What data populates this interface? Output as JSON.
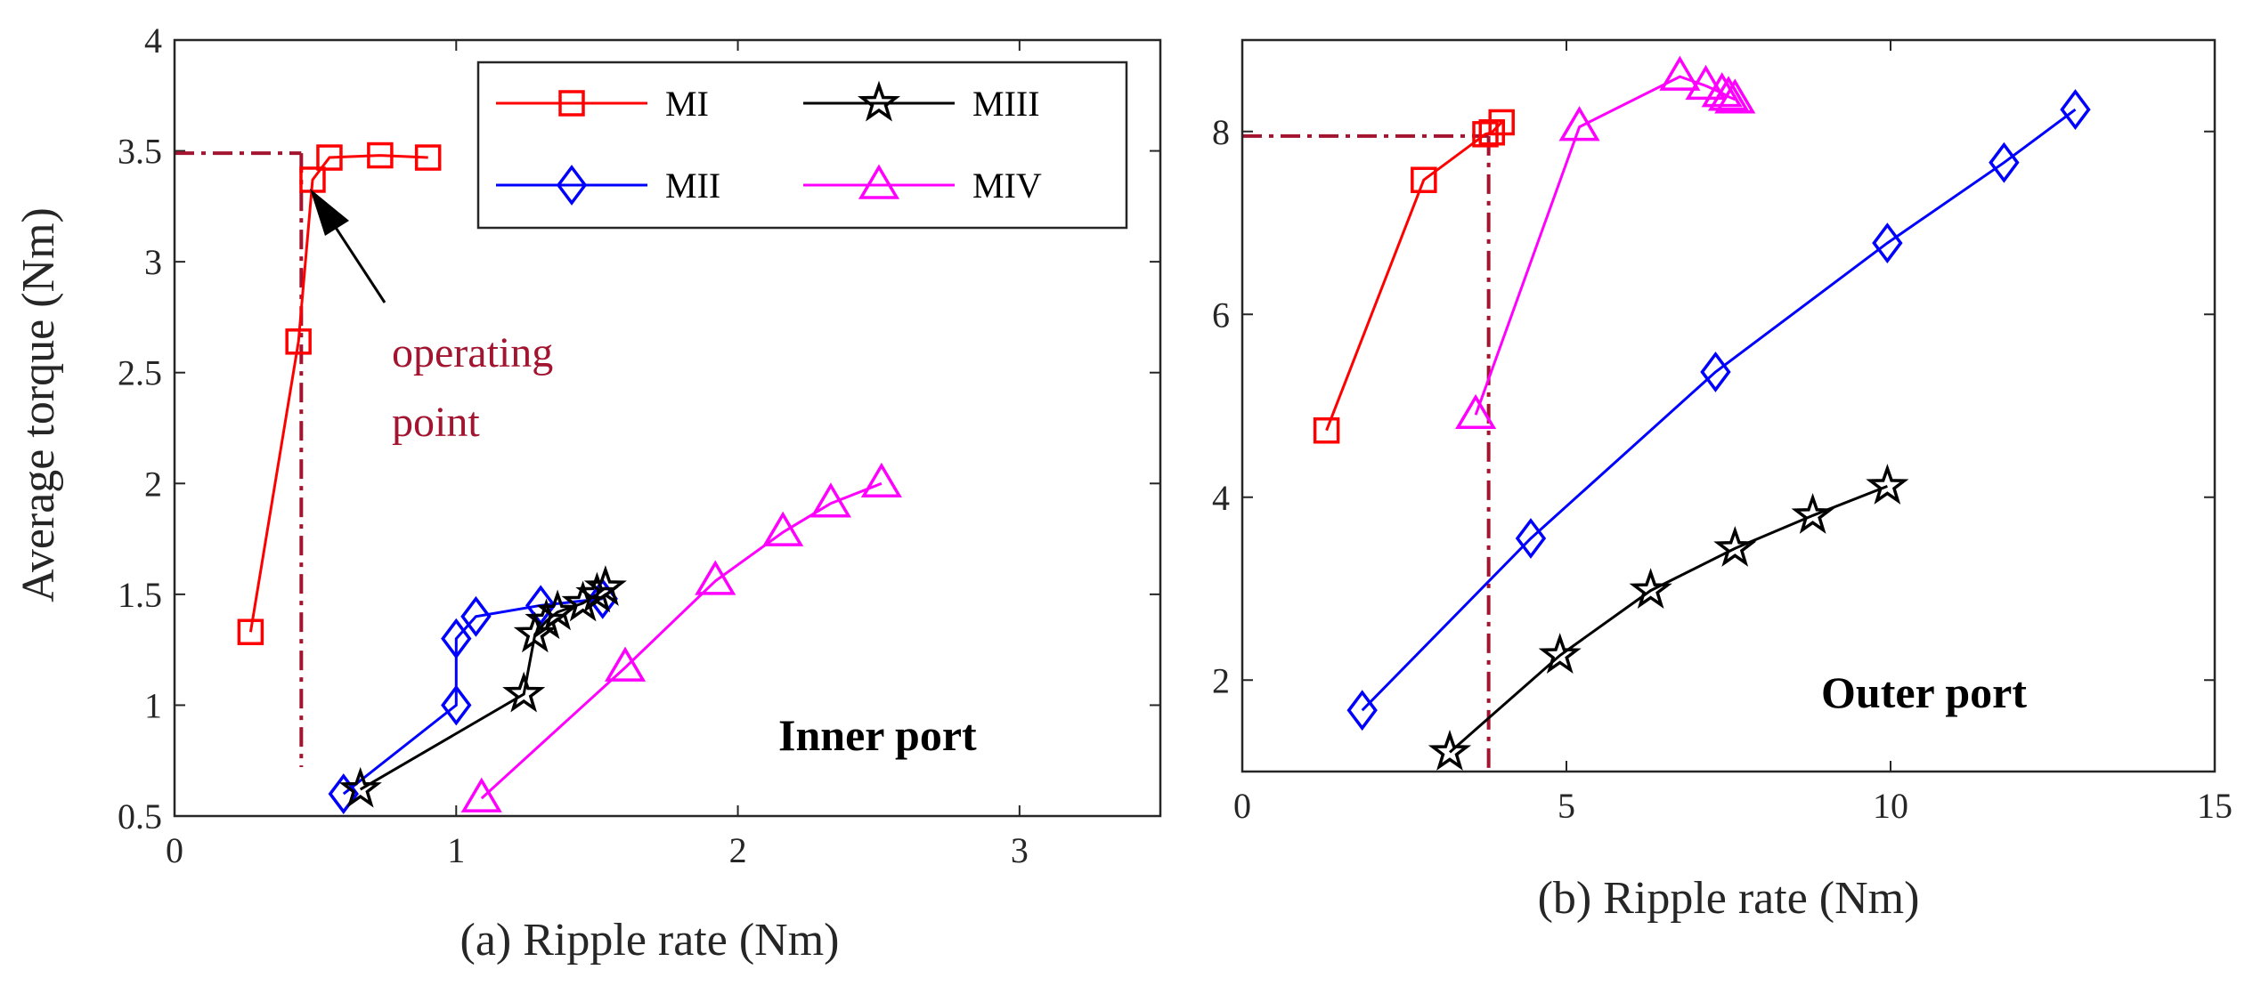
{
  "colors": {
    "MI": "#ff0000",
    "MII": "#0000ff",
    "MIII": "#000000",
    "MIV": "#ff00ff",
    "operating": "#a2142f",
    "axis": "#262626"
  },
  "chart_data": [
    {
      "id": "a",
      "type": "line",
      "xlabel": "(a) Ripple rate (Nm)",
      "ylabel": "Average torque (Nm)",
      "xlim": [
        0,
        3.5
      ],
      "ylim": [
        0.5,
        4
      ],
      "xticks": [
        0,
        1,
        2,
        3
      ],
      "yticks": [
        0.5,
        1,
        1.5,
        2,
        2.5,
        3,
        3.5,
        4
      ],
      "ytick_labels": [
        "0.5",
        "1",
        "1.5",
        "2",
        "2.5",
        "3",
        "3.5",
        "4"
      ],
      "xtick_labels": [
        "0",
        "1",
        "2",
        "3"
      ],
      "legend": {
        "position": "top-right",
        "entries": [
          "MI",
          "MII",
          "MIII",
          "MIV"
        ]
      },
      "series": [
        {
          "name": "MI",
          "marker": "square",
          "x": [
            0.27,
            0.44,
            0.49,
            0.55,
            0.73,
            0.9
          ],
          "y": [
            1.33,
            2.64,
            3.37,
            3.47,
            3.48,
            3.47
          ]
        },
        {
          "name": "MII",
          "marker": "diamond",
          "x": [
            0.6,
            1.0,
            1.0,
            1.07,
            1.3,
            1.52
          ],
          "y": [
            0.6,
            1.0,
            1.3,
            1.4,
            1.45,
            1.48
          ]
        },
        {
          "name": "MIII",
          "marker": "star",
          "x": [
            0.66,
            1.24,
            1.28,
            1.32,
            1.36,
            1.45,
            1.5,
            1.53
          ],
          "y": [
            0.62,
            1.05,
            1.32,
            1.38,
            1.42,
            1.46,
            1.5,
            1.53
          ]
        },
        {
          "name": "MIV",
          "marker": "triangle",
          "x": [
            1.09,
            1.6,
            1.92,
            2.16,
            2.33,
            2.51
          ],
          "y": [
            0.58,
            1.17,
            1.56,
            1.78,
            1.91,
            2.0
          ]
        }
      ],
      "operating_point": {
        "x": 0.45,
        "y": 3.49,
        "label_line1": "operating",
        "label_line2": "point"
      },
      "port_label": "Inner port"
    },
    {
      "id": "b",
      "type": "line",
      "xlabel": "(b) Ripple rate (Nm)",
      "ylabel": "",
      "xlim": [
        0,
        15
      ],
      "ylim": [
        1,
        9
      ],
      "xticks": [
        0,
        5,
        10,
        15
      ],
      "yticks": [
        2,
        4,
        6,
        8
      ],
      "ytick_labels": [
        "2",
        "4",
        "6",
        "8"
      ],
      "xtick_labels": [
        "0",
        "5",
        "10",
        "15"
      ],
      "series": [
        {
          "name": "MI",
          "marker": "square",
          "x": [
            1.3,
            2.8,
            3.75,
            3.85,
            4.0
          ],
          "y": [
            4.73,
            7.47,
            7.97,
            7.99,
            8.1
          ]
        },
        {
          "name": "MII",
          "marker": "diamond",
          "x": [
            1.85,
            4.45,
            7.3,
            9.95,
            11.75,
            12.85
          ],
          "y": [
            1.67,
            3.55,
            5.37,
            6.78,
            7.66,
            8.24
          ]
        },
        {
          "name": "MIII",
          "marker": "star",
          "x": [
            3.2,
            4.9,
            6.3,
            7.6,
            8.8,
            9.95
          ],
          "y": [
            1.21,
            2.27,
            2.98,
            3.44,
            3.8,
            4.12
          ]
        },
        {
          "name": "MIV",
          "marker": "triangle",
          "x": [
            3.6,
            5.2,
            6.75,
            7.15,
            7.4,
            7.5,
            7.6
          ],
          "y": [
            4.9,
            8.05,
            8.6,
            8.5,
            8.42,
            8.38,
            8.35
          ]
        }
      ],
      "operating_point": {
        "x": 3.8,
        "y": 7.95
      },
      "port_label": "Outer port"
    }
  ]
}
